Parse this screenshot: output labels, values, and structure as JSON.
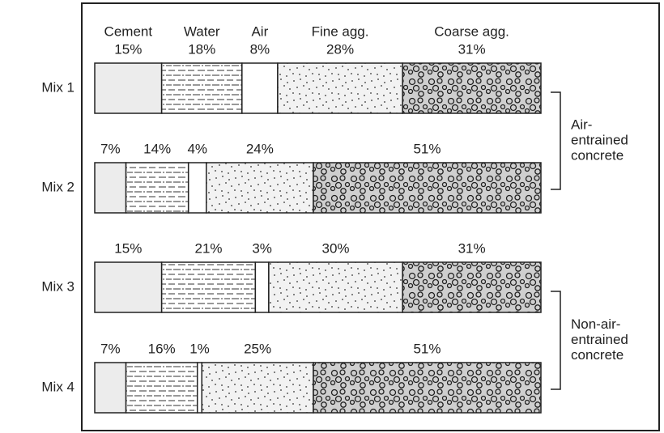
{
  "chart_data": {
    "type": "stacked-bar",
    "categories": [
      "Mix 1",
      "Mix 2",
      "Mix 3",
      "Mix 4"
    ],
    "xlim": [
      0,
      100
    ],
    "series": [
      {
        "name": "Cement",
        "color": "#ececec",
        "values": [
          15,
          7,
          15,
          7
        ],
        "value_labels": [
          "15%",
          "7%",
          "15%",
          "7%"
        ]
      },
      {
        "name": "Water",
        "color": "#ffffff",
        "values": [
          18,
          14,
          21,
          16
        ],
        "value_labels": [
          "18%",
          "14%",
          "21%",
          "16%"
        ]
      },
      {
        "name": "Air",
        "color": "#ffffff",
        "values": [
          8,
          4,
          3,
          1
        ],
        "value_labels": [
          "8%",
          "4%",
          "3%",
          "1%"
        ]
      },
      {
        "name": "Fine agg.",
        "color": "#f2f2f2",
        "values": [
          28,
          24,
          30,
          25
        ],
        "value_labels": [
          "28%",
          "24%",
          "30%",
          "25%"
        ]
      },
      {
        "name": "Coarse agg.",
        "color": "#cfcfcf",
        "values": [
          31,
          51,
          31,
          51
        ],
        "value_labels": [
          "31%",
          "51%",
          "31%",
          "51%"
        ]
      }
    ],
    "annotations": [
      {
        "lines": [
          "Air-",
          "entrained",
          "concrete"
        ]
      },
      {
        "lines": [
          "Non-air-",
          "entrained",
          "concrete"
        ]
      }
    ]
  }
}
